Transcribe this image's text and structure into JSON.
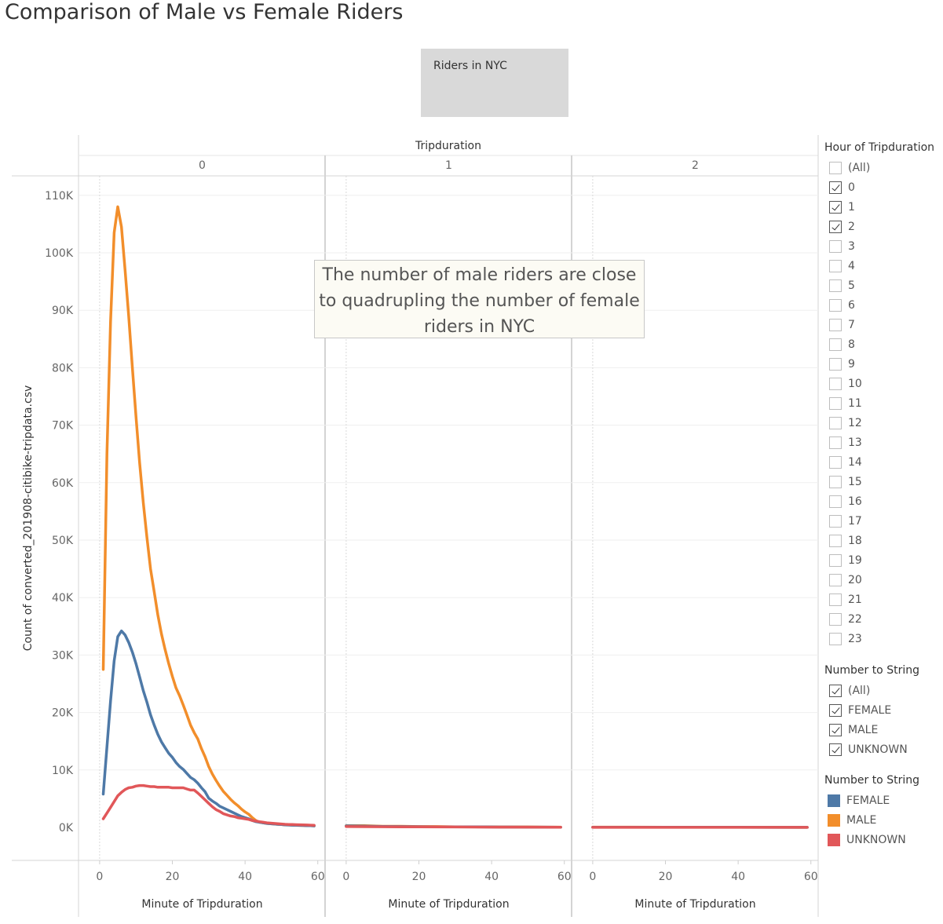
{
  "title": "Comparison of Male vs Female Riders",
  "riders_box": {
    "label": "Riders in NYC"
  },
  "annotation": {
    "text": "The number of male riders are close to quadrupling the number of female riders in NYC"
  },
  "filters": {
    "hour": {
      "title": "Hour of Tripduration",
      "items": [
        {
          "label": "(All)",
          "checked": false
        },
        {
          "label": "0",
          "checked": true
        },
        {
          "label": "1",
          "checked": true
        },
        {
          "label": "2",
          "checked": true
        },
        {
          "label": "3",
          "checked": false
        },
        {
          "label": "4",
          "checked": false
        },
        {
          "label": "5",
          "checked": false
        },
        {
          "label": "6",
          "checked": false
        },
        {
          "label": "7",
          "checked": false
        },
        {
          "label": "8",
          "checked": false
        },
        {
          "label": "9",
          "checked": false
        },
        {
          "label": "10",
          "checked": false
        },
        {
          "label": "11",
          "checked": false
        },
        {
          "label": "12",
          "checked": false
        },
        {
          "label": "13",
          "checked": false
        },
        {
          "label": "14",
          "checked": false
        },
        {
          "label": "15",
          "checked": false
        },
        {
          "label": "16",
          "checked": false
        },
        {
          "label": "17",
          "checked": false
        },
        {
          "label": "18",
          "checked": false
        },
        {
          "label": "19",
          "checked": false
        },
        {
          "label": "20",
          "checked": false
        },
        {
          "label": "21",
          "checked": false
        },
        {
          "label": "22",
          "checked": false
        },
        {
          "label": "23",
          "checked": false
        }
      ]
    },
    "gender": {
      "title": "Number to String",
      "items": [
        {
          "label": "(All)",
          "checked": true
        },
        {
          "label": "FEMALE",
          "checked": true
        },
        {
          "label": "MALE",
          "checked": true
        },
        {
          "label": "UNKNOWN",
          "checked": true
        }
      ]
    }
  },
  "color_legend": {
    "title": "Number to String",
    "items": [
      {
        "label": "FEMALE",
        "color": "#4e79a7"
      },
      {
        "label": "MALE",
        "color": "#f28e2b"
      },
      {
        "label": "UNKNOWN",
        "color": "#e15759"
      }
    ]
  },
  "chart_data": {
    "type": "line",
    "column_header": "Tripduration",
    "panels": [
      "0",
      "1",
      "2"
    ],
    "xlabel": "Minute of Tripduration",
    "ylabel": "Count of converted_201908-citibike-tripdata.csv",
    "xlim": [
      -3,
      62
    ],
    "xticks": [
      0,
      20,
      40,
      60
    ],
    "ylim": [
      0,
      112000
    ],
    "yticks": [
      0,
      10000,
      20000,
      30000,
      40000,
      50000,
      60000,
      70000,
      80000,
      90000,
      100000,
      110000
    ],
    "ytick_labels": [
      "0K",
      "10K",
      "20K",
      "30K",
      "40K",
      "50K",
      "60K",
      "70K",
      "80K",
      "90K",
      "100K",
      "110K"
    ],
    "grid": true,
    "series": [
      {
        "name": "MALE",
        "color": "#f28e2b",
        "panels": [
          {
            "x": [
              1,
              2,
              3,
              4,
              5,
              6,
              7,
              8,
              9,
              10,
              11,
              12,
              13,
              14,
              15,
              16,
              17,
              18,
              19,
              20,
              21,
              22,
              23,
              24,
              25,
              26,
              27,
              28,
              29,
              30,
              31,
              32,
              33,
              34,
              35,
              36,
              37,
              38,
              39,
              40,
              41,
              42,
              43,
              44,
              45,
              46,
              47,
              48,
              49,
              50,
              51,
              52,
              53,
              54,
              55,
              56,
              57,
              58,
              59
            ],
            "y": [
              27500,
              65000,
              88000,
              103500,
              108000,
              104500,
              97000,
              89000,
              80000,
              71500,
              63500,
              56500,
              50500,
              45000,
              41000,
              37000,
              33700,
              31000,
              28500,
              26300,
              24300,
              22900,
              21300,
              19600,
              17800,
              16500,
              15400,
              13700,
              12300,
              10600,
              9300,
              8200,
              7200,
              6300,
              5600,
              4900,
              4300,
              3800,
              3200,
              2700,
              2300,
              1700,
              1200,
              900,
              800,
              700,
              650,
              600,
              550,
              500,
              450,
              420,
              400,
              380,
              360,
              340,
              320,
              300,
              280
            ]
          },
          {
            "x": [
              0,
              5,
              10,
              15,
              20,
              25,
              30,
              35,
              40,
              45,
              50,
              55,
              59
            ],
            "y": [
              300,
              300,
              200,
              200,
              150,
              150,
              100,
              100,
              100,
              80,
              80,
              60,
              60
            ]
          },
          {
            "x": [
              0,
              10,
              20,
              30,
              40,
              50,
              59
            ],
            "y": [
              60,
              50,
              40,
              40,
              30,
              30,
              20
            ]
          }
        ]
      },
      {
        "name": "FEMALE",
        "color": "#4e79a7",
        "panels": [
          {
            "x": [
              1,
              2,
              3,
              4,
              5,
              6,
              7,
              8,
              9,
              10,
              11,
              12,
              13,
              14,
              15,
              16,
              17,
              18,
              19,
              20,
              21,
              22,
              23,
              24,
              25,
              26,
              27,
              28,
              29,
              30,
              31,
              32,
              33,
              34,
              35,
              36,
              37,
              38,
              39,
              40,
              41,
              42,
              43,
              44,
              45,
              46,
              47,
              48,
              49,
              50,
              51,
              52,
              53,
              54,
              55,
              56,
              57,
              58,
              59
            ],
            "y": [
              5800,
              14000,
              22000,
              29000,
              33200,
              34200,
              33500,
              32200,
              30500,
              28500,
              26200,
              23800,
              21800,
              19600,
              17800,
              16200,
              14900,
              13900,
              12900,
              12200,
              11300,
              10600,
              10100,
              9400,
              8700,
              8300,
              7700,
              6900,
              6200,
              5100,
              4600,
              4200,
              3700,
              3400,
              3100,
              2800,
              2500,
              2200,
              1900,
              1700,
              1500,
              1200,
              1000,
              900,
              800,
              700,
              650,
              600,
              550,
              500,
              450,
              420,
              400,
              380,
              360,
              340,
              320,
              300,
              280
            ]
          },
          {
            "x": [
              0,
              5,
              10,
              15,
              20,
              25,
              30,
              35,
              40,
              45,
              50,
              55,
              59
            ],
            "y": [
              280,
              220,
              180,
              150,
              130,
              110,
              100,
              90,
              80,
              70,
              60,
              50,
              40
            ]
          },
          {
            "x": [
              0,
              10,
              20,
              30,
              40,
              50,
              59
            ],
            "y": [
              40,
              35,
              30,
              25,
              25,
              20,
              15
            ]
          }
        ]
      },
      {
        "name": "UNKNOWN",
        "color": "#e15759",
        "panels": [
          {
            "x": [
              1,
              2,
              3,
              4,
              5,
              6,
              7,
              8,
              9,
              10,
              11,
              12,
              13,
              14,
              15,
              16,
              17,
              18,
              19,
              20,
              21,
              22,
              23,
              24,
              25,
              26,
              27,
              28,
              29,
              30,
              31,
              32,
              33,
              34,
              35,
              36,
              37,
              38,
              39,
              40,
              41,
              42,
              43,
              44,
              45,
              46,
              47,
              48,
              49,
              50,
              51,
              52,
              53,
              54,
              55,
              56,
              57,
              58,
              59
            ],
            "y": [
              1500,
              2500,
              3500,
              4500,
              5500,
              6100,
              6600,
              6900,
              7000,
              7200,
              7300,
              7300,
              7200,
              7100,
              7100,
              7000,
              7000,
              7000,
              7000,
              6900,
              6900,
              6900,
              6900,
              6700,
              6500,
              6500,
              6000,
              5400,
              4800,
              4200,
              3600,
              3100,
              2800,
              2400,
              2200,
              2000,
              1900,
              1700,
              1600,
              1500,
              1400,
              1200,
              1100,
              1000,
              900,
              800,
              750,
              700,
              650,
              600,
              550,
              520,
              500,
              480,
              460,
              440,
              420,
              400,
              380
            ]
          },
          {
            "x": [
              0,
              10,
              20,
              30,
              40,
              50,
              59
            ],
            "y": [
              150,
              120,
              100,
              80,
              60,
              50,
              40
            ]
          },
          {
            "x": [
              0,
              10,
              20,
              30,
              40,
              50,
              59
            ],
            "y": [
              20,
              20,
              15,
              15,
              10,
              10,
              10
            ]
          }
        ]
      }
    ]
  }
}
